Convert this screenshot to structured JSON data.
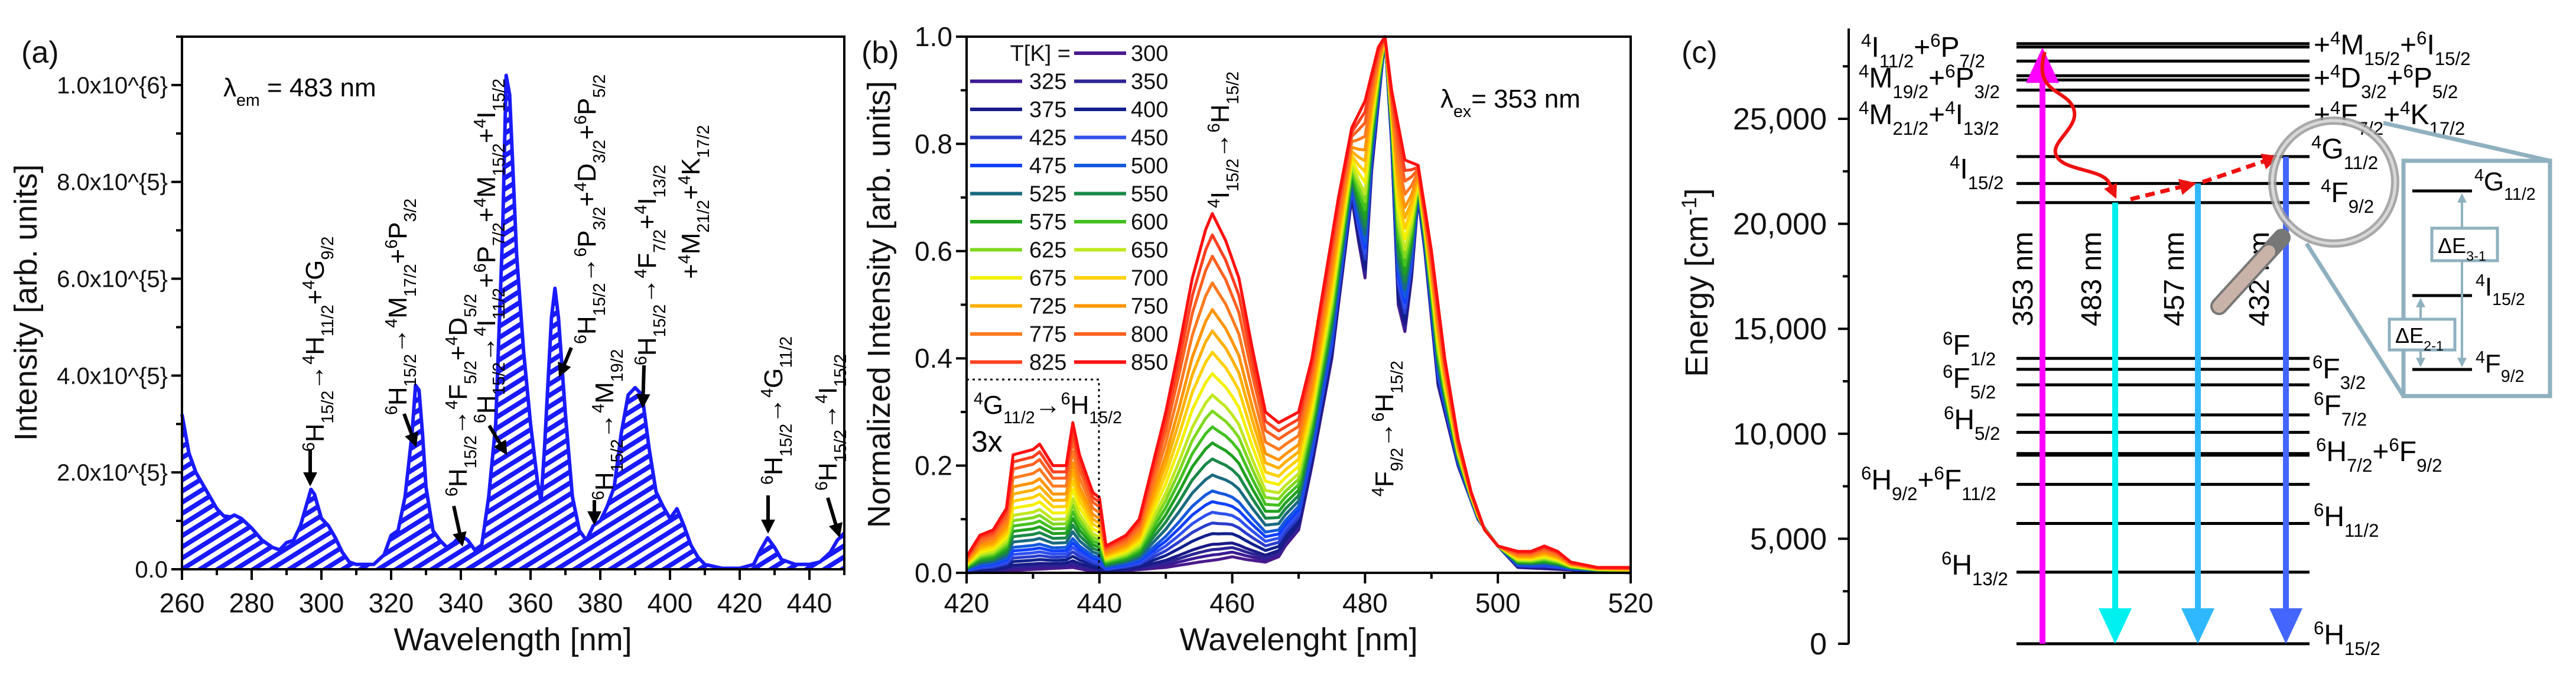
{
  "chart_data": [
    {
      "type": "area",
      "panel_label": "(a)",
      "xlabel": "Wavelength [nm]",
      "ylabel": "Intensity [arb. units]",
      "xlim": [
        260,
        450
      ],
      "ylim": [
        0,
        1100000
      ],
      "xticks": [
        260,
        280,
        300,
        320,
        340,
        360,
        380,
        400,
        420,
        440
      ],
      "yticks": [
        0,
        200000,
        400000,
        600000,
        800000,
        1000000
      ],
      "ytick_labels": [
        "0.0",
        "2.0x10^{5}",
        "4.0x10^{5}",
        "6.0x10^{5}",
        "8.0x10^{5}",
        "1.0x10^{6}"
      ],
      "inset_text": "λ_{em} = 483 nm",
      "annotations": [
        "^{6}H_{15/2}→^{4}H_{11/2}+^{4}G_{9/2}",
        "^{6}H_{15/2}→^{4}M_{17/2}+^{6}P_{3/2}",
        "^{6}H_{15/2}→^{4}F_{5/2}+^{4}D_{5/2}",
        "^{6}H_{15/2}→^{4}I_{11/2}+^{6}P_{7/2}+^{4}M_{15/2}+^{4}I_{15/2}",
        "^{6}H_{15/2}→^{6}P_{3/2}+^{4}D_{3/2}+^{6}P_{5/2}",
        "^{6}H_{15/2}→^{4}M_{19/2}",
        "^{6}H_{15/2}→^{4}F_{7/2}+^{4}I_{13/2}",
        "+^{4}M_{21/2}+^{4}K_{17/2}",
        "^{6}H_{15/2}→^{4}G_{11/2}",
        "^{6}H_{15/2}→^{4}I_{15/2}"
      ],
      "color": "#1a1aff",
      "x": [
        260,
        262,
        264,
        266,
        268,
        270,
        272,
        274,
        275,
        277,
        280,
        283,
        286,
        288,
        290,
        292,
        294,
        296,
        297,
        298,
        300,
        302,
        304,
        306,
        308,
        310,
        315,
        318,
        320,
        322,
        324,
        326,
        327,
        328,
        329,
        330,
        332,
        334,
        336,
        338,
        340,
        342,
        344,
        346,
        348,
        350,
        352,
        353,
        354,
        356,
        358,
        360,
        362,
        363,
        364,
        366,
        367,
        368,
        370,
        372,
        374,
        376,
        378,
        380,
        382,
        384,
        386,
        388,
        390,
        392,
        394,
        396,
        398,
        400,
        402,
        404,
        406,
        408,
        410,
        415,
        420,
        424,
        426,
        428,
        430,
        432,
        436,
        440,
        443,
        446,
        448,
        450
      ],
      "y": [
        320000,
        240000,
        200000,
        175000,
        150000,
        125000,
        110000,
        108000,
        112000,
        105000,
        85000,
        60000,
        45000,
        40000,
        55000,
        60000,
        90000,
        140000,
        165000,
        155000,
        105000,
        90000,
        65000,
        35000,
        15000,
        10000,
        10000,
        30000,
        70000,
        80000,
        150000,
        280000,
        380000,
        370000,
        280000,
        170000,
        80000,
        60000,
        45000,
        55000,
        70000,
        60000,
        40000,
        50000,
        150000,
        300000,
        700000,
        1020000,
        980000,
        650000,
        450000,
        300000,
        180000,
        140000,
        250000,
        520000,
        580000,
        520000,
        320000,
        150000,
        80000,
        60000,
        90000,
        100000,
        130000,
        170000,
        280000,
        360000,
        375000,
        360000,
        250000,
        160000,
        130000,
        105000,
        125000,
        90000,
        50000,
        25000,
        10000,
        2000,
        2000,
        10000,
        40000,
        65000,
        45000,
        20000,
        10000,
        10000,
        15000,
        35000,
        60000,
        75000
      ]
    },
    {
      "type": "line",
      "panel_label": "(b)",
      "xlabel": "Wavelenght [nm]",
      "ylabel": "Normalized Intensity [arb. units]",
      "xlim": [
        420,
        520
      ],
      "ylim": [
        0,
        1.0
      ],
      "xticks": [
        420,
        440,
        460,
        480,
        500,
        520
      ],
      "yticks": [
        0.0,
        0.2,
        0.4,
        0.6,
        0.8,
        1.0
      ],
      "ytick_labels": [
        "0.0",
        "0.2",
        "0.4",
        "0.6",
        "0.8",
        "1.0"
      ],
      "legend_title": "T[K] =",
      "inset_text": "λ_{ex}= 353 nm",
      "annotations": [
        "^{4}I_{15/2}→^{6}H_{15/2}",
        "^{4}F_{9/2}→^{6}H_{15/2}",
        "^{4}G_{11/2}→^{6}H_{15/2}",
        "3x"
      ],
      "magnified_region_nm": [
        420,
        440
      ],
      "magnification": 3,
      "profile_low": {
        "x": [
          420,
          436,
          440,
          445,
          450,
          455,
          458,
          460,
          462,
          465,
          467,
          468,
          470,
          472,
          475,
          478,
          479,
          480,
          481,
          483,
          484,
          485,
          486,
          487,
          488,
          489,
          491,
          494,
          497,
          500,
          503,
          520
        ],
        "y": [
          0,
          0.01,
          0,
          0.005,
          0.01,
          0.02,
          0.025,
          0.03,
          0.025,
          0.02,
          0.03,
          0.05,
          0.08,
          0.2,
          0.4,
          0.7,
          0.62,
          0.55,
          0.75,
          1.0,
          0.8,
          0.5,
          0.45,
          0.55,
          0.7,
          0.6,
          0.35,
          0.2,
          0.1,
          0.05,
          0.01,
          0
        ]
      },
      "profile_high": {
        "x": [
          420,
          422,
          424,
          426,
          427,
          430,
          431,
          433,
          435,
          436,
          437,
          439,
          440,
          441,
          444,
          446,
          448,
          450,
          452,
          454,
          456,
          457,
          459,
          461,
          463,
          465,
          467,
          470,
          472,
          474,
          476,
          478,
          480,
          482,
          483,
          484,
          486,
          488,
          490,
          492,
          494,
          496,
          498,
          500,
          503,
          505,
          507,
          509,
          511,
          515,
          520
        ],
        "y": [
          0.03,
          0.07,
          0.08,
          0.12,
          0.22,
          0.23,
          0.24,
          0.2,
          0.2,
          0.28,
          0.22,
          0.15,
          0.14,
          0.05,
          0.07,
          0.1,
          0.2,
          0.3,
          0.42,
          0.55,
          0.64,
          0.67,
          0.62,
          0.55,
          0.42,
          0.3,
          0.28,
          0.3,
          0.4,
          0.55,
          0.7,
          0.83,
          0.88,
          0.98,
          1.0,
          0.9,
          0.77,
          0.76,
          0.6,
          0.4,
          0.25,
          0.15,
          0.08,
          0.05,
          0.04,
          0.04,
          0.05,
          0.04,
          0.02,
          0.01,
          0.01
        ]
      },
      "series": [
        {
          "T": "300",
          "color": "#4b1a8c",
          "peak_457": 0.02
        },
        {
          "T": "325",
          "color": "#3c1a94",
          "peak_457": 0.03
        },
        {
          "T": "350",
          "color": "#2c2494",
          "peak_457": 0.04
        },
        {
          "T": "375",
          "color": "#1a1a88",
          "peak_457": 0.05
        },
        {
          "T": "400",
          "color": "#10208c",
          "peak_457": 0.07
        },
        {
          "T": "425",
          "color": "#2a3ccc",
          "peak_457": 0.09
        },
        {
          "T": "450",
          "color": "#3050ee",
          "peak_457": 0.11
        },
        {
          "T": "475",
          "color": "#1040ff",
          "peak_457": 0.13
        },
        {
          "T": "500",
          "color": "#1458dc",
          "peak_457": 0.15
        },
        {
          "T": "525",
          "color": "#1a6a80",
          "peak_457": 0.18
        },
        {
          "T": "550",
          "color": "#1a8848",
          "peak_457": 0.21
        },
        {
          "T": "575",
          "color": "#20a020",
          "peak_457": 0.24
        },
        {
          "T": "600",
          "color": "#44c020",
          "peak_457": 0.27
        },
        {
          "T": "625",
          "color": "#80d820",
          "peak_457": 0.3
        },
        {
          "T": "650",
          "color": "#c0e820",
          "peak_457": 0.33
        },
        {
          "T": "675",
          "color": "#f4f000",
          "peak_457": 0.37
        },
        {
          "T": "700",
          "color": "#ffd000",
          "peak_457": 0.41
        },
        {
          "T": "725",
          "color": "#ffb000",
          "peak_457": 0.45
        },
        {
          "T": "750",
          "color": "#ff9400",
          "peak_457": 0.49
        },
        {
          "T": "775",
          "color": "#ff7a20",
          "peak_457": 0.54
        },
        {
          "T": "800",
          "color": "#ff6020",
          "peak_457": 0.59
        },
        {
          "T": "825",
          "color": "#ff4020",
          "peak_457": 0.63
        },
        {
          "T": "850",
          "color": "#ff1010",
          "peak_457": 0.67
        }
      ]
    },
    {
      "type": "energy-level-diagram",
      "panel_label": "(c)",
      "ylabel": "Energy [cm^{-1}]",
      "ylim": [
        0,
        29300
      ],
      "yticks": [
        0,
        5000,
        10000,
        15000,
        20000,
        25000
      ],
      "ytick_labels": [
        "0",
        "5,000",
        "10,000",
        "15,000",
        "20,000",
        "25,000"
      ],
      "levels_cm1": [
        28580,
        28420,
        27750,
        27050,
        26850,
        26370,
        25600,
        23200,
        21920,
        21010,
        13590,
        13070,
        12330,
        10900,
        10070,
        9060,
        8980,
        7590,
        5730,
        3410,
        0
      ],
      "left_labels": [
        "^{4}I_{11/2}+^{6}P_{7/2}",
        "^{4}M_{19/2}+^{6}P_{3/2}",
        "^{4}M_{21/2}+^{4}I_{13/2}",
        "^{4}I_{15/2}",
        "^{6}F_{1/2}",
        "^{6}F_{5/2}",
        "^{6}H_{5/2}",
        "^{6}H_{9/2}+^{6}F_{11/2}",
        "^{6}H_{13/2}"
      ],
      "right_labels": [
        "+^{4}M_{15/2}+^{6}I_{15/2}",
        "+^{4}D_{3/2}+^{6}P_{5/2}",
        "+^{4}F_{7/2}+^{4}K_{17/2}",
        "^{4}G_{11/2}",
        "^{4}F_{9/2}",
        "^{6}F_{3/2}",
        "^{6}F_{7/2}",
        "^{6}H_{7/2}+^{6}F_{9/2}",
        "^{6}H_{11/2}",
        "^{6}H_{15/2}"
      ],
      "transitions": [
        {
          "label": "353 nm",
          "from": 0,
          "to": 28400,
          "color": "#ff00ff"
        },
        {
          "label": "483 nm",
          "from": 21010,
          "to": 0,
          "color": "#00f0f0"
        },
        {
          "label": "457 nm",
          "from": 21920,
          "to": 0,
          "color": "#30b8ff"
        },
        {
          "label": "432 nm",
          "from": 23200,
          "to": 0,
          "color": "#4466ff"
        }
      ],
      "relaxation_color": "#ee1111",
      "inset": {
        "labels": [
          "^{4}G_{11/2}",
          "^{4}I_{15/2}",
          "^{4}F_{9/2}"
        ],
        "gaps": [
          "ΔE_{3-1}",
          "ΔE_{2-1}"
        ],
        "color": "#8fb0bf"
      }
    }
  ]
}
